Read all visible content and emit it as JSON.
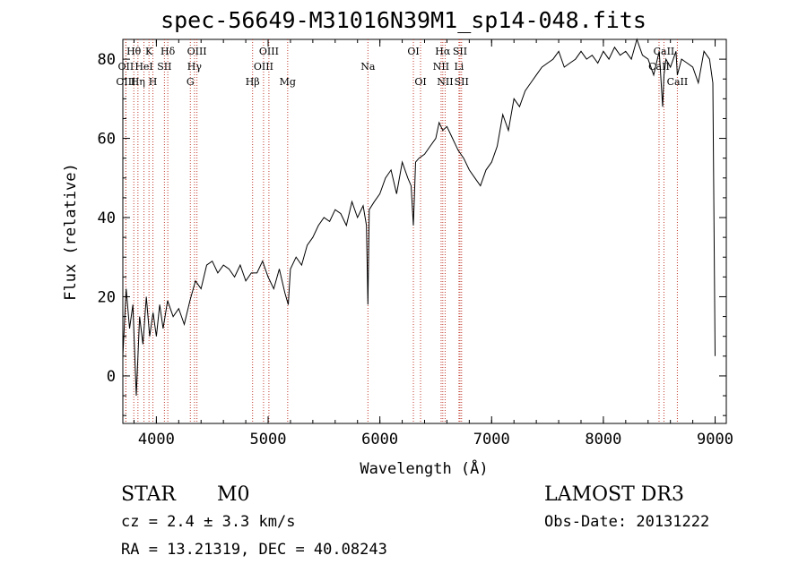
{
  "chart_data": {
    "type": "line",
    "title": "spec-56649-M31016N39M1_sp14-048.fits",
    "xlabel": "Wavelength (Å)",
    "ylabel": "Flux (relative)",
    "xlim": [
      3700,
      9100
    ],
    "ylim": [
      -12,
      85
    ],
    "x_ticks": [
      4000,
      5000,
      6000,
      7000,
      8000,
      9000
    ],
    "x_tick_labels": [
      "4000",
      "5000",
      "6000",
      "7000",
      "8000",
      "9000"
    ],
    "y_ticks": [
      0,
      20,
      40,
      60,
      80
    ],
    "y_tick_labels": [
      "0",
      "20",
      "40",
      "60",
      "80"
    ],
    "series": [
      {
        "name": "spectrum",
        "x": [
          3700,
          3730,
          3760,
          3790,
          3820,
          3850,
          3880,
          3910,
          3940,
          3970,
          4000,
          4030,
          4060,
          4100,
          4150,
          4200,
          4250,
          4300,
          4350,
          4400,
          4450,
          4500,
          4550,
          4600,
          4650,
          4700,
          4750,
          4800,
          4850,
          4900,
          4950,
          5000,
          5050,
          5100,
          5150,
          5180,
          5200,
          5250,
          5300,
          5350,
          5400,
          5450,
          5500,
          5550,
          5600,
          5650,
          5700,
          5750,
          5800,
          5850,
          5880,
          5893,
          5905,
          5950,
          6000,
          6050,
          6100,
          6150,
          6200,
          6250,
          6280,
          6300,
          6320,
          6350,
          6400,
          6450,
          6500,
          6530,
          6563,
          6600,
          6650,
          6700,
          6750,
          6800,
          6850,
          6900,
          6950,
          7000,
          7050,
          7100,
          7150,
          7200,
          7250,
          7300,
          7350,
          7400,
          7450,
          7500,
          7550,
          7600,
          7650,
          7700,
          7750,
          7800,
          7850,
          7900,
          7950,
          8000,
          8050,
          8100,
          8150,
          8200,
          8250,
          8300,
          8350,
          8400,
          8450,
          8500,
          8530,
          8542,
          8560,
          8600,
          8650,
          8662,
          8700,
          8750,
          8800,
          8850,
          8900,
          8950,
          8980,
          9000
        ],
        "y": [
          5,
          22,
          12,
          18,
          -5,
          15,
          8,
          20,
          10,
          16,
          10,
          18,
          12,
          19,
          15,
          17,
          13,
          19,
          24,
          22,
          28,
          29,
          26,
          28,
          27,
          25,
          28,
          24,
          26,
          26,
          29,
          25,
          22,
          27,
          21,
          18,
          27,
          30,
          28,
          33,
          35,
          38,
          40,
          39,
          42,
          41,
          38,
          44,
          40,
          43,
          38,
          18,
          42,
          44,
          46,
          50,
          52,
          46,
          54,
          50,
          48,
          38,
          54,
          55,
          56,
          58,
          60,
          64,
          62,
          63,
          60,
          57,
          55,
          52,
          50,
          48,
          52,
          54,
          58,
          66,
          62,
          70,
          68,
          72,
          74,
          76,
          78,
          79,
          80,
          82,
          78,
          79,
          80,
          82,
          80,
          81,
          79,
          82,
          80,
          83,
          81,
          82,
          80,
          85,
          81,
          80,
          76,
          82,
          68,
          76,
          80,
          78,
          82,
          76,
          80,
          79,
          78,
          74,
          82,
          80,
          74,
          5
        ]
      }
    ],
    "spectral_lines": [
      {
        "name": "Hθ",
        "wavelength": 3798,
        "row": 0
      },
      {
        "name": "OII",
        "wavelength": 3727,
        "row": 1
      },
      {
        "name": "OIII",
        "wavelength": 3727,
        "row": 2
      },
      {
        "name": "K",
        "wavelength": 3934,
        "row": 0
      },
      {
        "name": "HeI",
        "wavelength": 3889,
        "row": 1
      },
      {
        "name": "Hη",
        "wavelength": 3835,
        "row": 2
      },
      {
        "name": "Hδ",
        "wavelength": 4102,
        "row": 0
      },
      {
        "name": "SII",
        "wavelength": 4072,
        "row": 1
      },
      {
        "name": "H",
        "wavelength": 3969,
        "row": 2
      },
      {
        "name": "OIII",
        "wavelength": 4363,
        "row": 0
      },
      {
        "name": "Hγ",
        "wavelength": 4341,
        "row": 1
      },
      {
        "name": "G",
        "wavelength": 4304,
        "row": 2
      },
      {
        "name": "Hβ",
        "wavelength": 4861,
        "row": 2
      },
      {
        "name": "OIII",
        "wavelength": 5007,
        "row": 0
      },
      {
        "name": "OIII",
        "wavelength": 4959,
        "row": 1
      },
      {
        "name": "Mg",
        "wavelength": 5175,
        "row": 2
      },
      {
        "name": "Na",
        "wavelength": 5893,
        "row": 1
      },
      {
        "name": "OI",
        "wavelength": 6300,
        "row": 0
      },
      {
        "name": "OI",
        "wavelength": 6364,
        "row": 2
      },
      {
        "name": "Hα",
        "wavelength": 6563,
        "row": 0
      },
      {
        "name": "NII",
        "wavelength": 6548,
        "row": 1
      },
      {
        "name": "NII",
        "wavelength": 6584,
        "row": 2
      },
      {
        "name": "SII",
        "wavelength": 6717,
        "row": 0
      },
      {
        "name": "Li",
        "wavelength": 6708,
        "row": 1
      },
      {
        "name": "SII",
        "wavelength": 6731,
        "row": 2
      },
      {
        "name": "CaII",
        "wavelength": 8542,
        "row": 0
      },
      {
        "name": "CaII",
        "wavelength": 8498,
        "row": 1
      },
      {
        "name": "CaII",
        "wavelength": 8662,
        "row": 2
      }
    ],
    "grid": false
  },
  "info": {
    "class": "STAR",
    "subclass": "M0",
    "survey": "LAMOST DR3",
    "cz": "cz = 2.4 ± 3.3 km/s",
    "obs_date": "Obs-Date: 20131222",
    "coords": "RA =  13.21319, DEC =  40.08243"
  },
  "colors": {
    "line_marker": "#c0392b",
    "spectrum": "#000000",
    "axes": "#000000"
  }
}
